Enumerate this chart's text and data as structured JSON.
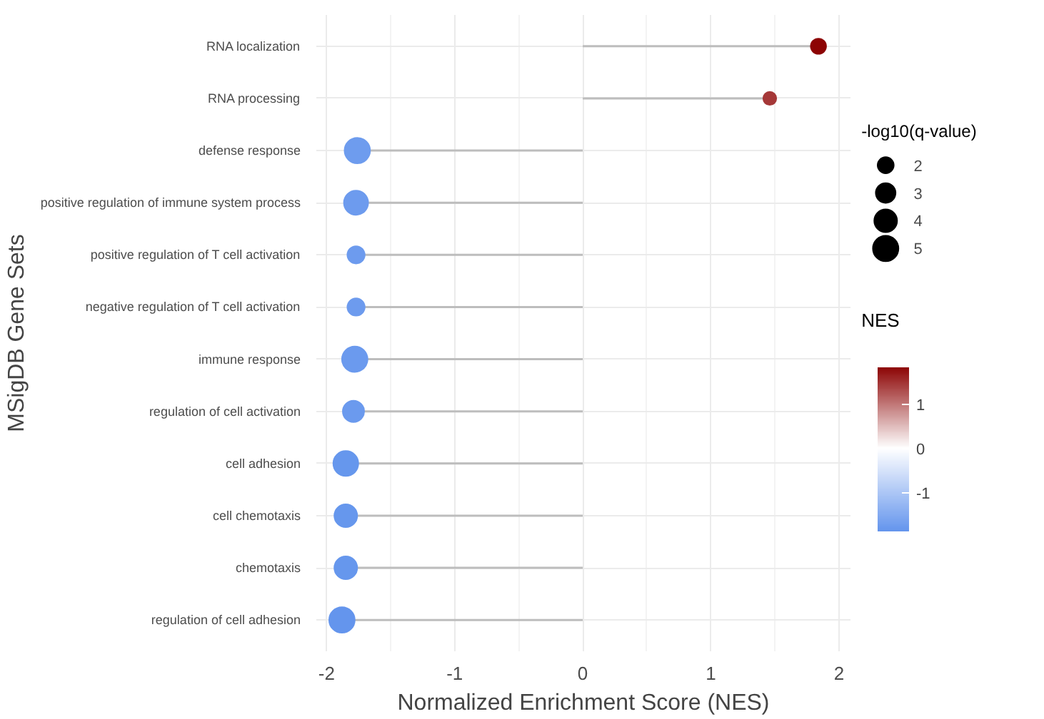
{
  "chart_data": {
    "type": "lollipop",
    "orientation": "horizontal",
    "xlabel": "Normalized Enrichment Score (NES)",
    "ylabel": "MSigDB Gene Sets",
    "categories": [
      "RNA localization",
      "RNA processing",
      "defense response",
      "positive regulation of immune system process",
      "positive regulation of T cell activation",
      "negative regulation of T cell activation",
      "immune response",
      "regulation of cell activation",
      "cell adhesion",
      "cell chemotaxis",
      "chemotaxis",
      "regulation of cell adhesion"
    ],
    "values": [
      1.84,
      1.46,
      -1.76,
      -1.77,
      -1.77,
      -1.77,
      -1.78,
      -1.79,
      -1.85,
      -1.85,
      -1.85,
      -1.88
    ],
    "cvalues": [
      1.84,
      1.46,
      -1.76,
      -1.77,
      -1.77,
      -1.77,
      -1.78,
      -1.79,
      -1.85,
      -1.85,
      -1.85,
      -1.88
    ],
    "sizes": [
      1.8,
      1.3,
      5,
      4.5,
      2.3,
      2.3,
      5,
      3.5,
      4.8,
      4,
      4,
      5
    ],
    "size_legend": [
      2,
      3,
      4,
      5
    ],
    "legend_title": "-log10(q-value)",
    "clabel": "NES",
    "clim": [
      -1.88,
      1.84
    ],
    "cticks": [
      -1,
      0,
      1
    ],
    "xlim": [
      -2.08,
      2.09
    ],
    "xticks": [
      -2,
      -1,
      0,
      1,
      2
    ],
    "grid": true
  }
}
